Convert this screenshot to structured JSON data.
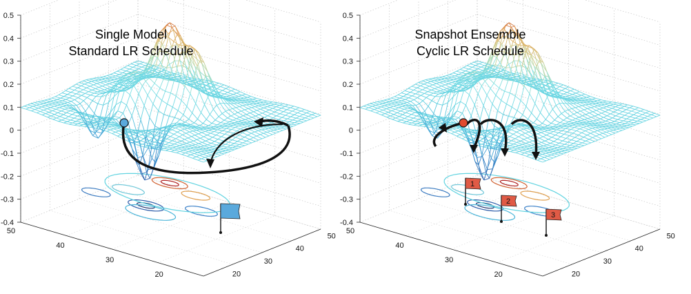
{
  "chart_data": [
    {
      "type": "surface",
      "title": "Single Model",
      "subtitle": "Standard LR Schedule",
      "z_ticks": [
        "0.5",
        "0.4",
        "0.3",
        "0.2",
        "0.1",
        "0",
        "-0.1",
        "-0.2",
        "-0.3",
        "-0.4"
      ],
      "zlim": [
        -0.4,
        0.5
      ],
      "left_axis_ticks": [
        "50",
        "40",
        "30",
        "20"
      ],
      "right_axis_ticks": [
        "20",
        "30",
        "40",
        "50"
      ],
      "grid": true,
      "colormap": "jet",
      "start_marker_color": "#5aa9dc",
      "flags": [
        {
          "label": "",
          "color": "#5aa9dc"
        }
      ]
    },
    {
      "type": "surface",
      "title": "Snapshot Ensemble",
      "subtitle": "Cyclic LR Schedule",
      "z_ticks": [
        "0.5",
        "0.4",
        "0.3",
        "0.2",
        "0.1",
        "0",
        "-0.1",
        "-0.2",
        "-0.3",
        "-0.4"
      ],
      "zlim": [
        -0.4,
        0.5
      ],
      "left_axis_ticks": [
        "50",
        "40",
        "30",
        "20"
      ],
      "right_axis_ticks": [
        "20",
        "30",
        "40",
        "50"
      ],
      "grid": true,
      "colormap": "jet",
      "start_marker_color": "#e04a2f",
      "flags": [
        {
          "label": "1",
          "color": "#e05a45"
        },
        {
          "label": "2",
          "color": "#e05a45"
        },
        {
          "label": "3",
          "color": "#e05a45"
        }
      ]
    }
  ]
}
